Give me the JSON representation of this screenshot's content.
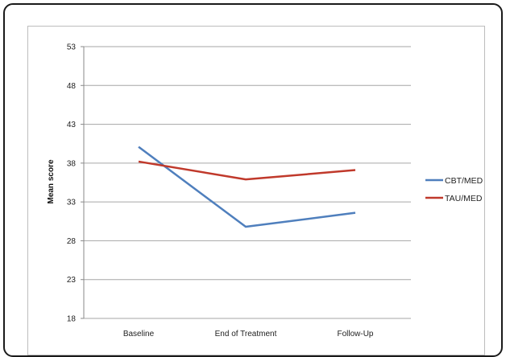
{
  "chart_data": {
    "type": "line",
    "title": "",
    "xlabel": "",
    "ylabel": "Mean score",
    "categories": [
      "Baseline",
      "End of Treatment",
      "Follow-Up"
    ],
    "y_ticks": [
      "53",
      "48",
      "43",
      "38",
      "33",
      "28",
      "23",
      "18"
    ],
    "ylim": [
      18,
      53
    ],
    "grid": true,
    "legend_position": "right",
    "series": [
      {
        "name": "CBT/MED",
        "values": [
          40.1,
          29.8,
          31.6
        ],
        "color": "#4f7fbd"
      },
      {
        "name": "TAU/MED",
        "values": [
          38.2,
          35.9,
          37.1
        ],
        "color": "#c0392b"
      }
    ]
  }
}
